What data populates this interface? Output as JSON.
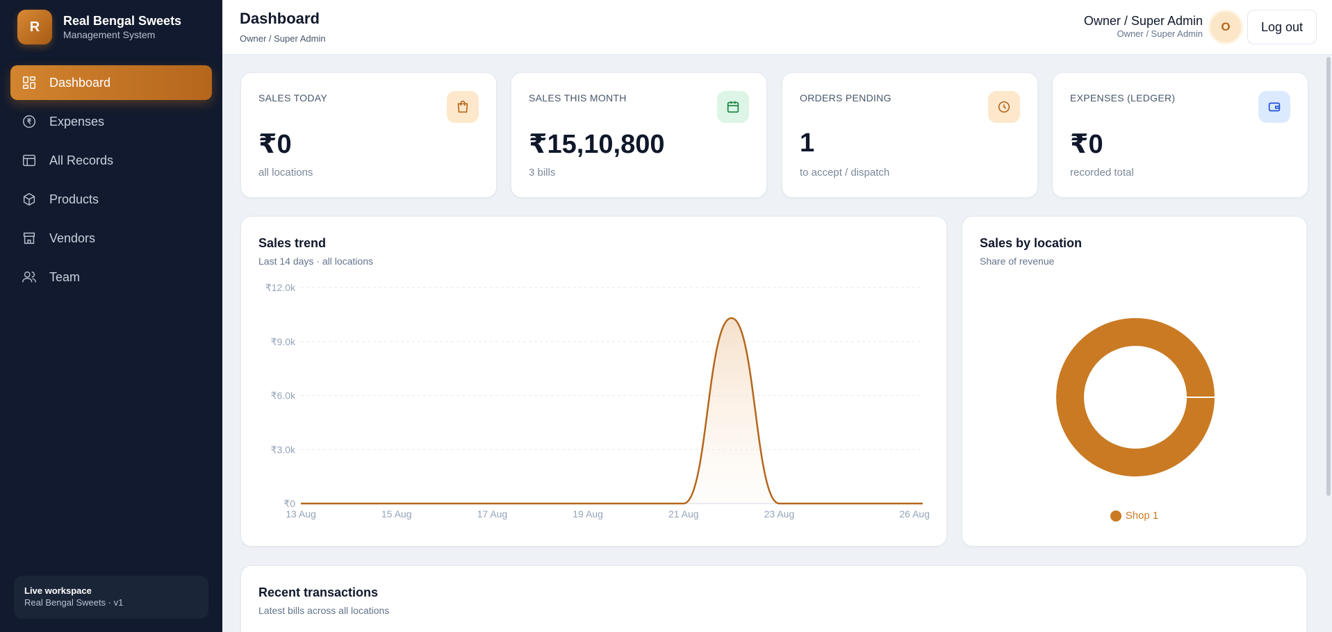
{
  "brand": {
    "logo_letter": "R",
    "name": "Real Bengal Sweets",
    "subtitle": "Management System"
  },
  "sidebar": {
    "items": [
      {
        "label": "Dashboard",
        "icon": "dashboard-icon",
        "active": true
      },
      {
        "label": "Expenses",
        "icon": "rupee-icon",
        "active": false
      },
      {
        "label": "All Records",
        "icon": "table-icon",
        "active": false
      },
      {
        "label": "Products",
        "icon": "box-icon",
        "active": false
      },
      {
        "label": "Vendors",
        "icon": "store-icon",
        "active": false
      },
      {
        "label": "Team",
        "icon": "users-icon",
        "active": false
      }
    ],
    "workspace": {
      "title": "Live workspace",
      "subtitle": "Real Bengal Sweets · v1"
    }
  },
  "header": {
    "title": "Dashboard",
    "subtitle": "Owner / Super Admin",
    "user_name": "Owner / Super Admin",
    "user_role": "Owner / Super Admin",
    "avatar_letter": "O",
    "logout_label": "Log out"
  },
  "stats": [
    {
      "label": "SALES TODAY",
      "value": "₹0",
      "note": "all locations",
      "icon": "shopping-bag-icon",
      "icon_bg": "#fde8cc",
      "icon_color": "#b5661c"
    },
    {
      "label": "SALES THIS MONTH",
      "value": "₹15,10,800",
      "note": "3 bills",
      "icon": "calendar-icon",
      "icon_bg": "#dcf5e6",
      "icon_color": "#15803d"
    },
    {
      "label": "ORDERS PENDING",
      "value": "1",
      "note": "to accept / dispatch",
      "icon": "clock-icon",
      "icon_bg": "#fde8cc",
      "icon_color": "#b5661c"
    },
    {
      "label": "EXPENSES (LEDGER)",
      "value": "₹0",
      "note": "recorded total",
      "icon": "wallet-icon",
      "icon_bg": "#dbeafe",
      "icon_color": "#1d4ed8"
    }
  ],
  "sales_trend": {
    "title": "Sales trend",
    "subtitle": "Last 14 days · all locations"
  },
  "sales_by_location": {
    "title": "Sales by location",
    "subtitle": "Share of revenue"
  },
  "recent": {
    "title": "Recent transactions",
    "subtitle": "Latest bills across all locations"
  },
  "colors": {
    "accent": "#b5661c",
    "donut": "#c97a23",
    "sidebar_bg": "#111a2e"
  },
  "chart_data": [
    {
      "type": "area",
      "title": "Sales trend",
      "x": [
        "13 Aug",
        "14 Aug",
        "15 Aug",
        "16 Aug",
        "17 Aug",
        "18 Aug",
        "19 Aug",
        "20 Aug",
        "21 Aug",
        "22 Aug",
        "23 Aug",
        "24 Aug",
        "25 Aug",
        "26 Aug"
      ],
      "x_tick_labels": [
        "13 Aug",
        "15 Aug",
        "17 Aug",
        "19 Aug",
        "21 Aug",
        "23 Aug",
        "26 Aug"
      ],
      "values": [
        0,
        0,
        0,
        0,
        0,
        0,
        0,
        0,
        0,
        10300,
        0,
        0,
        0,
        0
      ],
      "ylim": [
        0,
        12000
      ],
      "y_tick_labels": [
        "₹0",
        "₹3.0k",
        "₹6.0k",
        "₹9.0k",
        "₹12.0k"
      ],
      "y_ticks": [
        0,
        3000,
        6000,
        9000,
        12000
      ],
      "grid": true
    },
    {
      "type": "pie",
      "title": "Sales by location",
      "categories": [
        "Shop 1"
      ],
      "values": [
        100
      ],
      "legend": "bottom"
    }
  ]
}
